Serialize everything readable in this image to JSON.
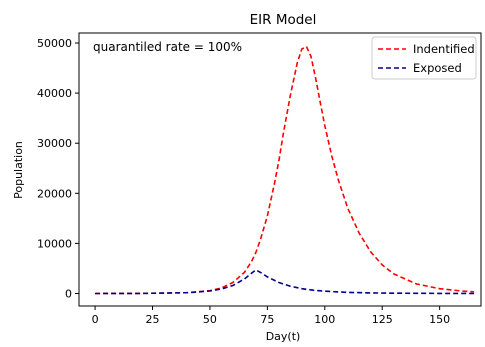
{
  "chart_data": {
    "type": "line",
    "title": "EIR Model",
    "xlabel": "Day(t)",
    "ylabel": "Population",
    "annotation": "quarantiled rate = 100%",
    "xlim": [
      -7,
      168
    ],
    "ylim": [
      -2500,
      52000
    ],
    "xticks": [
      0,
      25,
      50,
      75,
      100,
      125,
      150
    ],
    "yticks": [
      0,
      10000,
      20000,
      30000,
      40000,
      50000
    ],
    "grid": false,
    "legend_position": "top-right",
    "series": [
      {
        "name": "Indentified",
        "color": "#ff0000",
        "dash": "dashed",
        "x": [
          0,
          20,
          40,
          50,
          55,
          60,
          65,
          68,
          70,
          72,
          75,
          78,
          80,
          82,
          85,
          88,
          90,
          92,
          94,
          96,
          98,
          100,
          103,
          106,
          110,
          115,
          120,
          125,
          130,
          140,
          150,
          160,
          165
        ],
        "y": [
          0,
          20,
          150,
          550,
          1100,
          2200,
          4200,
          6300,
          8200,
          10800,
          15500,
          21800,
          26500,
          32000,
          39500,
          46000,
          48800,
          49300,
          47300,
          43000,
          38200,
          33500,
          27500,
          22500,
          17000,
          12000,
          8300,
          5700,
          3900,
          1900,
          950,
          480,
          340
        ]
      },
      {
        "name": "Exposed",
        "color": "#00008b",
        "dash": "dashed",
        "x": [
          0,
          20,
          40,
          50,
          55,
          60,
          65,
          68,
          70,
          72,
          75,
          80,
          85,
          90,
          95,
          100,
          110,
          120,
          130,
          140,
          150,
          160,
          165
        ],
        "y": [
          0,
          20,
          150,
          500,
          900,
          1600,
          2900,
          4000,
          4700,
          4200,
          3300,
          2200,
          1450,
          950,
          650,
          450,
          220,
          110,
          55,
          30,
          15,
          8,
          5
        ]
      }
    ]
  }
}
